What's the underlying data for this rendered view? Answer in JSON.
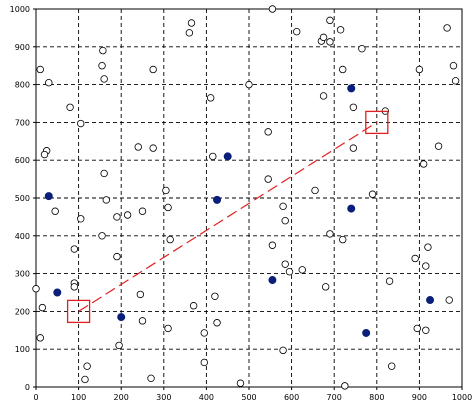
{
  "chart_data": {
    "type": "scatter",
    "title": "",
    "xlabel": "",
    "ylabel": "",
    "xlim": [
      0,
      1000
    ],
    "ylim": [
      0,
      1000
    ],
    "x_ticks": [
      0,
      100,
      200,
      300,
      400,
      500,
      600,
      700,
      800,
      900,
      1000
    ],
    "y_ticks": [
      0,
      100,
      200,
      300,
      400,
      500,
      600,
      700,
      800,
      900,
      1000
    ],
    "grid": true,
    "colors": {
      "filled": "#0a1f7a",
      "open": "#ffffff",
      "path": "#e02020"
    },
    "series": [
      {
        "style": "open-circle",
        "points": [
          [
            555,
            1000
          ],
          [
            365,
            963
          ],
          [
            360,
            937
          ],
          [
            157,
            890
          ],
          [
            612,
            940
          ],
          [
            670,
            915
          ],
          [
            675,
            925
          ],
          [
            690,
            970
          ],
          [
            715,
            945
          ],
          [
            690,
            913
          ],
          [
            765,
            895
          ],
          [
            965,
            950
          ],
          [
            10,
            840
          ],
          [
            155,
            850
          ],
          [
            275,
            840
          ],
          [
            30,
            805
          ],
          [
            160,
            815
          ],
          [
            720,
            840
          ],
          [
            900,
            840
          ],
          [
            980,
            850
          ],
          [
            985,
            810
          ],
          [
            500,
            800
          ],
          [
            410,
            765
          ],
          [
            675,
            770
          ],
          [
            80,
            740
          ],
          [
            105,
            697
          ],
          [
            745,
            740
          ],
          [
            820,
            730
          ],
          [
            545,
            675
          ],
          [
            945,
            637
          ],
          [
            240,
            635
          ],
          [
            275,
            632
          ],
          [
            745,
            632
          ],
          [
            25,
            625
          ],
          [
            20,
            615
          ],
          [
            415,
            610
          ],
          [
            910,
            590
          ],
          [
            160,
            565
          ],
          [
            545,
            550
          ],
          [
            655,
            520
          ],
          [
            165,
            495
          ],
          [
            305,
            520
          ],
          [
            790,
            510
          ],
          [
            45,
            465
          ],
          [
            105,
            445
          ],
          [
            190,
            450
          ],
          [
            215,
            455
          ],
          [
            250,
            465
          ],
          [
            310,
            475
          ],
          [
            580,
            478
          ],
          [
            585,
            440
          ],
          [
            155,
            400
          ],
          [
            315,
            390
          ],
          [
            555,
            375
          ],
          [
            690,
            405
          ],
          [
            720,
            390
          ],
          [
            920,
            370
          ],
          [
            90,
            365
          ],
          [
            190,
            345
          ],
          [
            890,
            340
          ],
          [
            915,
            320
          ],
          [
            585,
            325
          ],
          [
            595,
            305
          ],
          [
            625,
            310
          ],
          [
            90,
            275
          ],
          [
            90,
            265
          ],
          [
            680,
            265
          ],
          [
            830,
            280
          ],
          [
            0,
            260
          ],
          [
            245,
            245
          ],
          [
            420,
            240
          ],
          [
            15,
            210
          ],
          [
            370,
            215
          ],
          [
            970,
            230
          ],
          [
            250,
            175
          ],
          [
            425,
            170
          ],
          [
            310,
            155
          ],
          [
            395,
            143
          ],
          [
            895,
            155
          ],
          [
            915,
            150
          ],
          [
            10,
            130
          ],
          [
            195,
            110
          ],
          [
            580,
            97
          ],
          [
            395,
            65
          ],
          [
            120,
            55
          ],
          [
            835,
            55
          ],
          [
            270,
            23
          ],
          [
            115,
            20
          ],
          [
            480,
            10
          ],
          [
            725,
            3
          ]
        ]
      },
      {
        "style": "filled-circle",
        "points": [
          [
            740,
            790
          ],
          [
            450,
            610
          ],
          [
            30,
            505
          ],
          [
            425,
            495
          ],
          [
            740,
            472
          ],
          [
            555,
            283
          ],
          [
            50,
            250
          ],
          [
            925,
            230
          ],
          [
            200,
            185
          ],
          [
            775,
            143
          ]
        ]
      }
    ],
    "path": {
      "style": "dashed",
      "from": [
        100,
        200
      ],
      "to": [
        800,
        700
      ]
    },
    "markers": [
      {
        "shape": "square",
        "at": [
          100,
          200
        ]
      },
      {
        "shape": "square",
        "at": [
          800,
          700
        ]
      }
    ]
  }
}
